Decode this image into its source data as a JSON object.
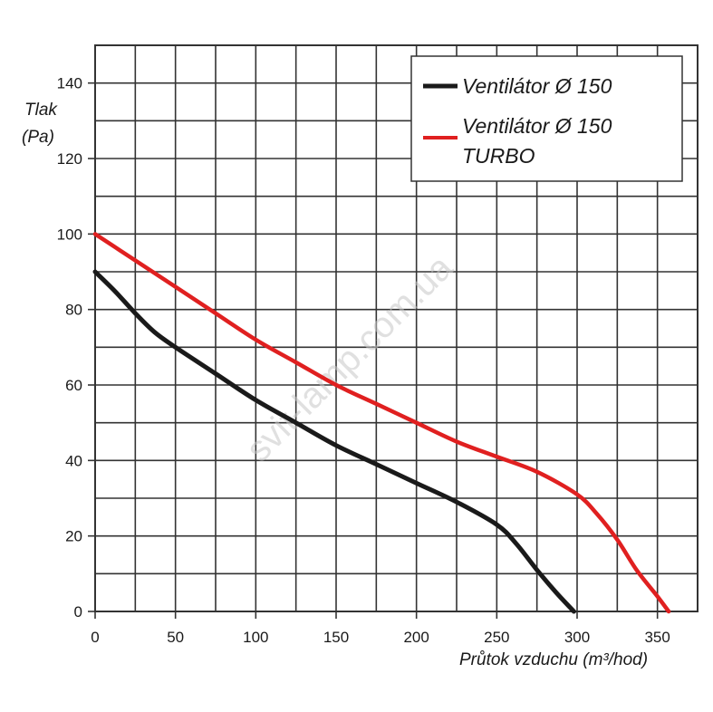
{
  "chart_data": {
    "type": "line",
    "xlabel": "Průtok vzduchu (m³/hod)",
    "ylabel_line1": "Tlak",
    "ylabel_line2": "(Pa)",
    "xlim": [
      0,
      375
    ],
    "ylim": [
      0,
      150
    ],
    "x_ticks": [
      0,
      50,
      100,
      150,
      200,
      250,
      300,
      350
    ],
    "y_ticks": [
      0,
      20,
      40,
      60,
      80,
      100,
      120,
      140
    ],
    "grid": true,
    "legend_position": "top-right",
    "watermark": "svit-lamp.com.ua",
    "series": [
      {
        "name": "Ventilátor Ø 150",
        "color": "#1a1a1a",
        "x": [
          0,
          12,
          25,
          37,
          50,
          75,
          100,
          125,
          150,
          175,
          200,
          225,
          250,
          262,
          275,
          287,
          298
        ],
        "y": [
          90,
          85,
          79,
          74,
          70,
          63,
          56,
          50,
          44,
          39,
          34,
          29,
          23,
          18,
          11,
          5,
          0
        ]
      },
      {
        "name_line1": "Ventilátor Ø 150",
        "name_line2": "TURBO",
        "color": "#e02020",
        "x": [
          0,
          25,
          50,
          75,
          100,
          125,
          150,
          175,
          200,
          225,
          250,
          275,
          300,
          312,
          325,
          337,
          350,
          357
        ],
        "y": [
          100,
          93,
          86,
          79,
          72,
          66,
          60,
          55,
          50,
          45,
          41,
          37,
          31,
          26,
          19,
          11,
          4,
          0
        ]
      }
    ]
  }
}
